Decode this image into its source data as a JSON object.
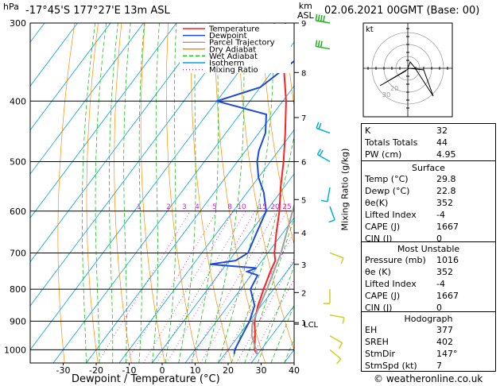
{
  "header": {
    "pressure_unit": "hPa",
    "location": "-17°45'S 177°27'E 13m ASL",
    "height_unit_line1": "km",
    "height_unit_line2": "ASL",
    "date": "02.06.2021 00GMT (Base: 00)"
  },
  "mixing_ratio_label": "Mixing Ratio (g/kg)",
  "footer": "© weatheronline.co.uk",
  "colors": {
    "temperature": "#ff2020",
    "dewpoint": "#1e4bd8",
    "parcel": "#a0a0a0",
    "dry_adiabat": "#ff8c00",
    "wet_adiabat": "#20c020",
    "isotherm": "#00a0e0",
    "mixing_ratio": "#d020d0"
  },
  "chart_data": {
    "type": "line",
    "xlabel": "Dewpoint / Temperature (°C)",
    "ylabel": "hPa",
    "x_ticks": [
      "-30",
      "-20",
      "-10",
      "0",
      "10",
      "20",
      "30",
      "40"
    ],
    "y_ticks": [
      "300",
      "400",
      "500",
      "600",
      "700",
      "800",
      "900",
      "1000"
    ],
    "xlim": [
      -40,
      40
    ],
    "ylim": [
      1050,
      300
    ],
    "height_ticks": [
      {
        "p": 300,
        "km": "9"
      },
      {
        "p": 360,
        "km": "8"
      },
      {
        "p": 425,
        "km": "7"
      },
      {
        "p": 500,
        "km": "6"
      },
      {
        "p": 575,
        "km": "5"
      },
      {
        "p": 650,
        "km": "4"
      },
      {
        "p": 730,
        "km": "3"
      },
      {
        "p": 810,
        "km": "2"
      },
      {
        "p": 905,
        "km": "1"
      }
    ],
    "lcl_label": "LCL",
    "lcl_pressure": 910,
    "mixing_ratio_values": [
      "1",
      "2",
      "3",
      "4",
      "5",
      "8",
      "10",
      "15",
      "20",
      "25"
    ],
    "legend": [
      "Temperature",
      "Dewpoint",
      "Parcel Trajectory",
      "Dry Adiabat",
      "Wet Adiabat",
      "Isotherm",
      "Mixing Ratio"
    ],
    "series": [
      {
        "name": "Temperature",
        "points": [
          [
            1016,
            29.8
          ],
          [
            1000,
            28
          ],
          [
            950,
            25
          ],
          [
            900,
            21.5
          ],
          [
            850,
            19
          ],
          [
            800,
            17
          ],
          [
            750,
            15
          ],
          [
            720,
            14
          ],
          [
            700,
            12
          ],
          [
            650,
            8
          ],
          [
            600,
            4
          ],
          [
            550,
            -1
          ],
          [
            500,
            -6
          ],
          [
            450,
            -12
          ],
          [
            400,
            -19
          ],
          [
            350,
            -28
          ],
          [
            300,
            -37
          ]
        ]
      },
      {
        "name": "Dewpoint",
        "points": [
          [
            1016,
            22.8
          ],
          [
            1000,
            22
          ],
          [
            950,
            21
          ],
          [
            900,
            20
          ],
          [
            850,
            18
          ],
          [
            800,
            13
          ],
          [
            760,
            12
          ],
          [
            750,
            8
          ],
          [
            740,
            10
          ],
          [
            730,
            -5
          ],
          [
            720,
            2
          ],
          [
            700,
            4
          ],
          [
            650,
            2
          ],
          [
            600,
            0
          ],
          [
            560,
            -5
          ],
          [
            530,
            -10
          ],
          [
            500,
            -14
          ],
          [
            480,
            -16
          ],
          [
            450,
            -18
          ],
          [
            420,
            -22
          ],
          [
            400,
            -40
          ],
          [
            380,
            -30
          ],
          [
            340,
            -25
          ],
          [
            320,
            -20
          ],
          [
            300,
            -28
          ]
        ]
      },
      {
        "name": "Parcel Trajectory",
        "points": [
          [
            1016,
            29.8
          ],
          [
            950,
            24
          ],
          [
            910,
            21.5
          ],
          [
            850,
            19.5
          ],
          [
            800,
            18
          ],
          [
            700,
            14
          ],
          [
            600,
            8
          ],
          [
            500,
            1
          ],
          [
            400,
            -9
          ],
          [
            300,
            -25
          ]
        ]
      }
    ],
    "wind_barbs": [
      {
        "p": 300,
        "dir": 280,
        "kt": 35
      },
      {
        "p": 330,
        "dir": 280,
        "kt": 30
      },
      {
        "p": 450,
        "dir": 290,
        "kt": 20
      },
      {
        "p": 500,
        "dir": 300,
        "kt": 15
      },
      {
        "p": 550,
        "dir": 190,
        "kt": 10
      },
      {
        "p": 590,
        "dir": 160,
        "kt": 10
      },
      {
        "p": 700,
        "dir": 110,
        "kt": 5
      },
      {
        "p": 800,
        "dir": 180,
        "kt": 5
      },
      {
        "p": 880,
        "dir": 100,
        "kt": 10
      },
      {
        "p": 950,
        "dir": 120,
        "kt": 10
      },
      {
        "p": 1000,
        "dir": 130,
        "kt": 10
      }
    ]
  },
  "hodograph": {
    "unit_label": "kt",
    "ring_labels": [
      "20",
      "30"
    ]
  },
  "indices": {
    "rows": [
      {
        "k": "K",
        "v": "32"
      },
      {
        "k": "Totals Totals",
        "v": "44"
      },
      {
        "k": "PW (cm)",
        "v": "4.95"
      }
    ]
  },
  "surface": {
    "title": "Surface",
    "rows": [
      {
        "k": "Temp (°C)",
        "v": "29.8"
      },
      {
        "k": "Dewp (°C)",
        "v": "22.8"
      },
      {
        "k": "θe(K)",
        "v": "352"
      },
      {
        "k": "Lifted Index",
        "v": "-4"
      },
      {
        "k": "CAPE (J)",
        "v": "1667"
      },
      {
        "k": "CIN (J)",
        "v": "0"
      }
    ]
  },
  "most_unstable": {
    "title": "Most Unstable",
    "rows": [
      {
        "k": "Pressure (mb)",
        "v": "1016"
      },
      {
        "k": "θe (K)",
        "v": "352"
      },
      {
        "k": "Lifted Index",
        "v": "-4"
      },
      {
        "k": "CAPE (J)",
        "v": "1667"
      },
      {
        "k": "CIN (J)",
        "v": "0"
      }
    ]
  },
  "hodograph_table": {
    "title": "Hodograph",
    "rows": [
      {
        "k": "EH",
        "v": "377"
      },
      {
        "k": "SREH",
        "v": "402"
      },
      {
        "k": "StmDir",
        "v": "147°"
      },
      {
        "k": "StmSpd (kt)",
        "v": "7"
      }
    ]
  }
}
